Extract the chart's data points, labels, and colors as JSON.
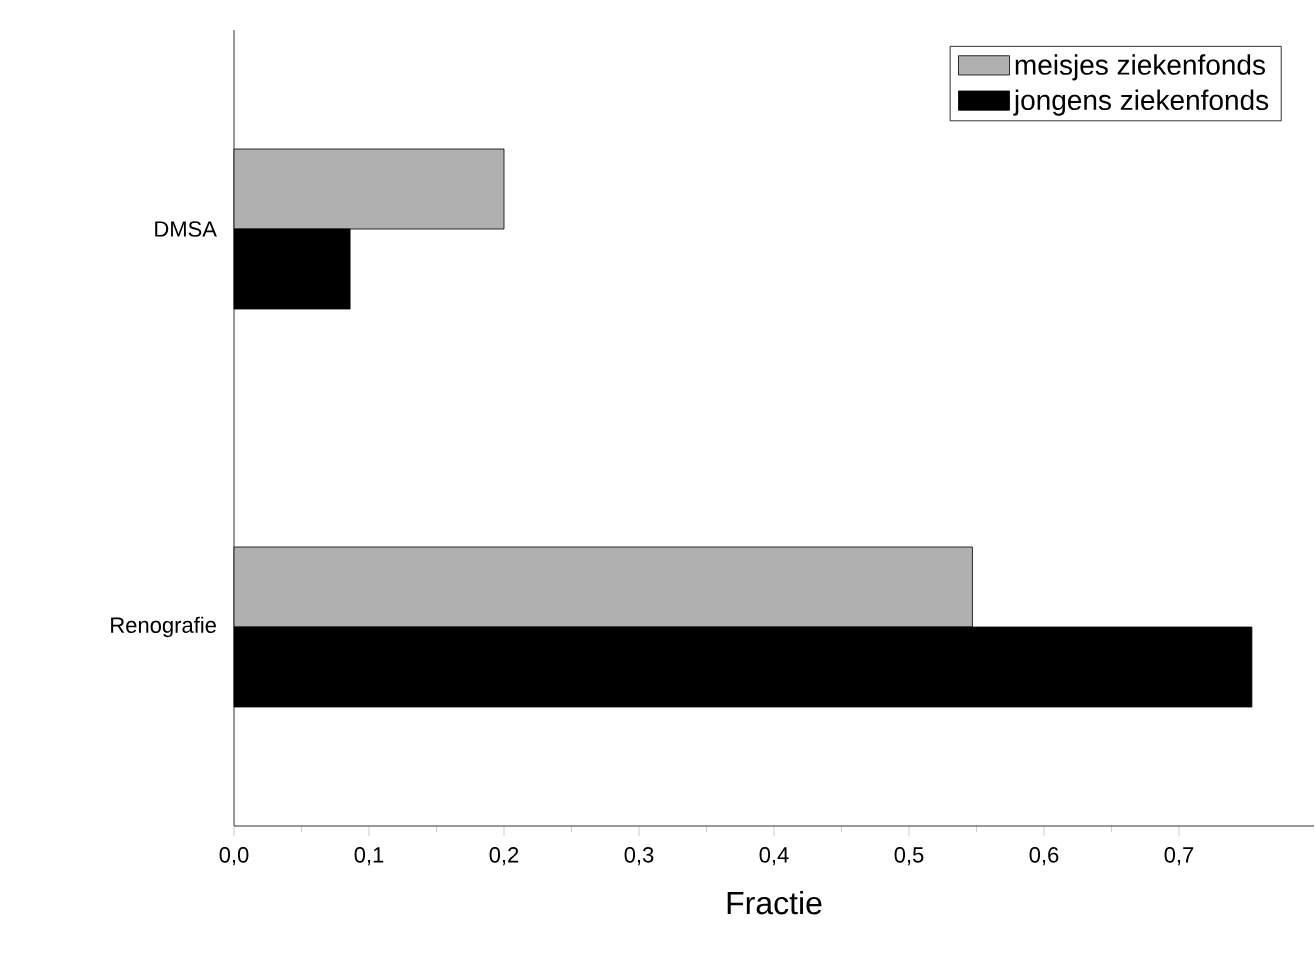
{
  "chart_data": {
    "type": "bar",
    "orientation": "horizontal",
    "xlabel": "Fractie",
    "categories": [
      "DMSA",
      "Renografie"
    ],
    "series": [
      {
        "name": "meisjes ziekenfonds",
        "color": "#b0b0b0",
        "values": [
          0.2,
          0.547
        ]
      },
      {
        "name": "jongens ziekenfonds",
        "color": "#000000",
        "values": [
          0.086,
          0.754
        ]
      }
    ],
    "xlim": [
      0,
      0.8
    ],
    "xticks": [
      {
        "value": 0,
        "label": "0,0"
      },
      {
        "value": 0.1,
        "label": "0,1"
      },
      {
        "value": 0.2,
        "label": "0,2"
      },
      {
        "value": 0.3,
        "label": "0,3"
      },
      {
        "value": 0.4,
        "label": "0,4"
      },
      {
        "value": 0.5,
        "label": "0,5"
      },
      {
        "value": 0.6,
        "label": "0,6"
      },
      {
        "value": 0.7,
        "label": "0,7"
      }
    ],
    "grid": false,
    "legend": "top right"
  }
}
